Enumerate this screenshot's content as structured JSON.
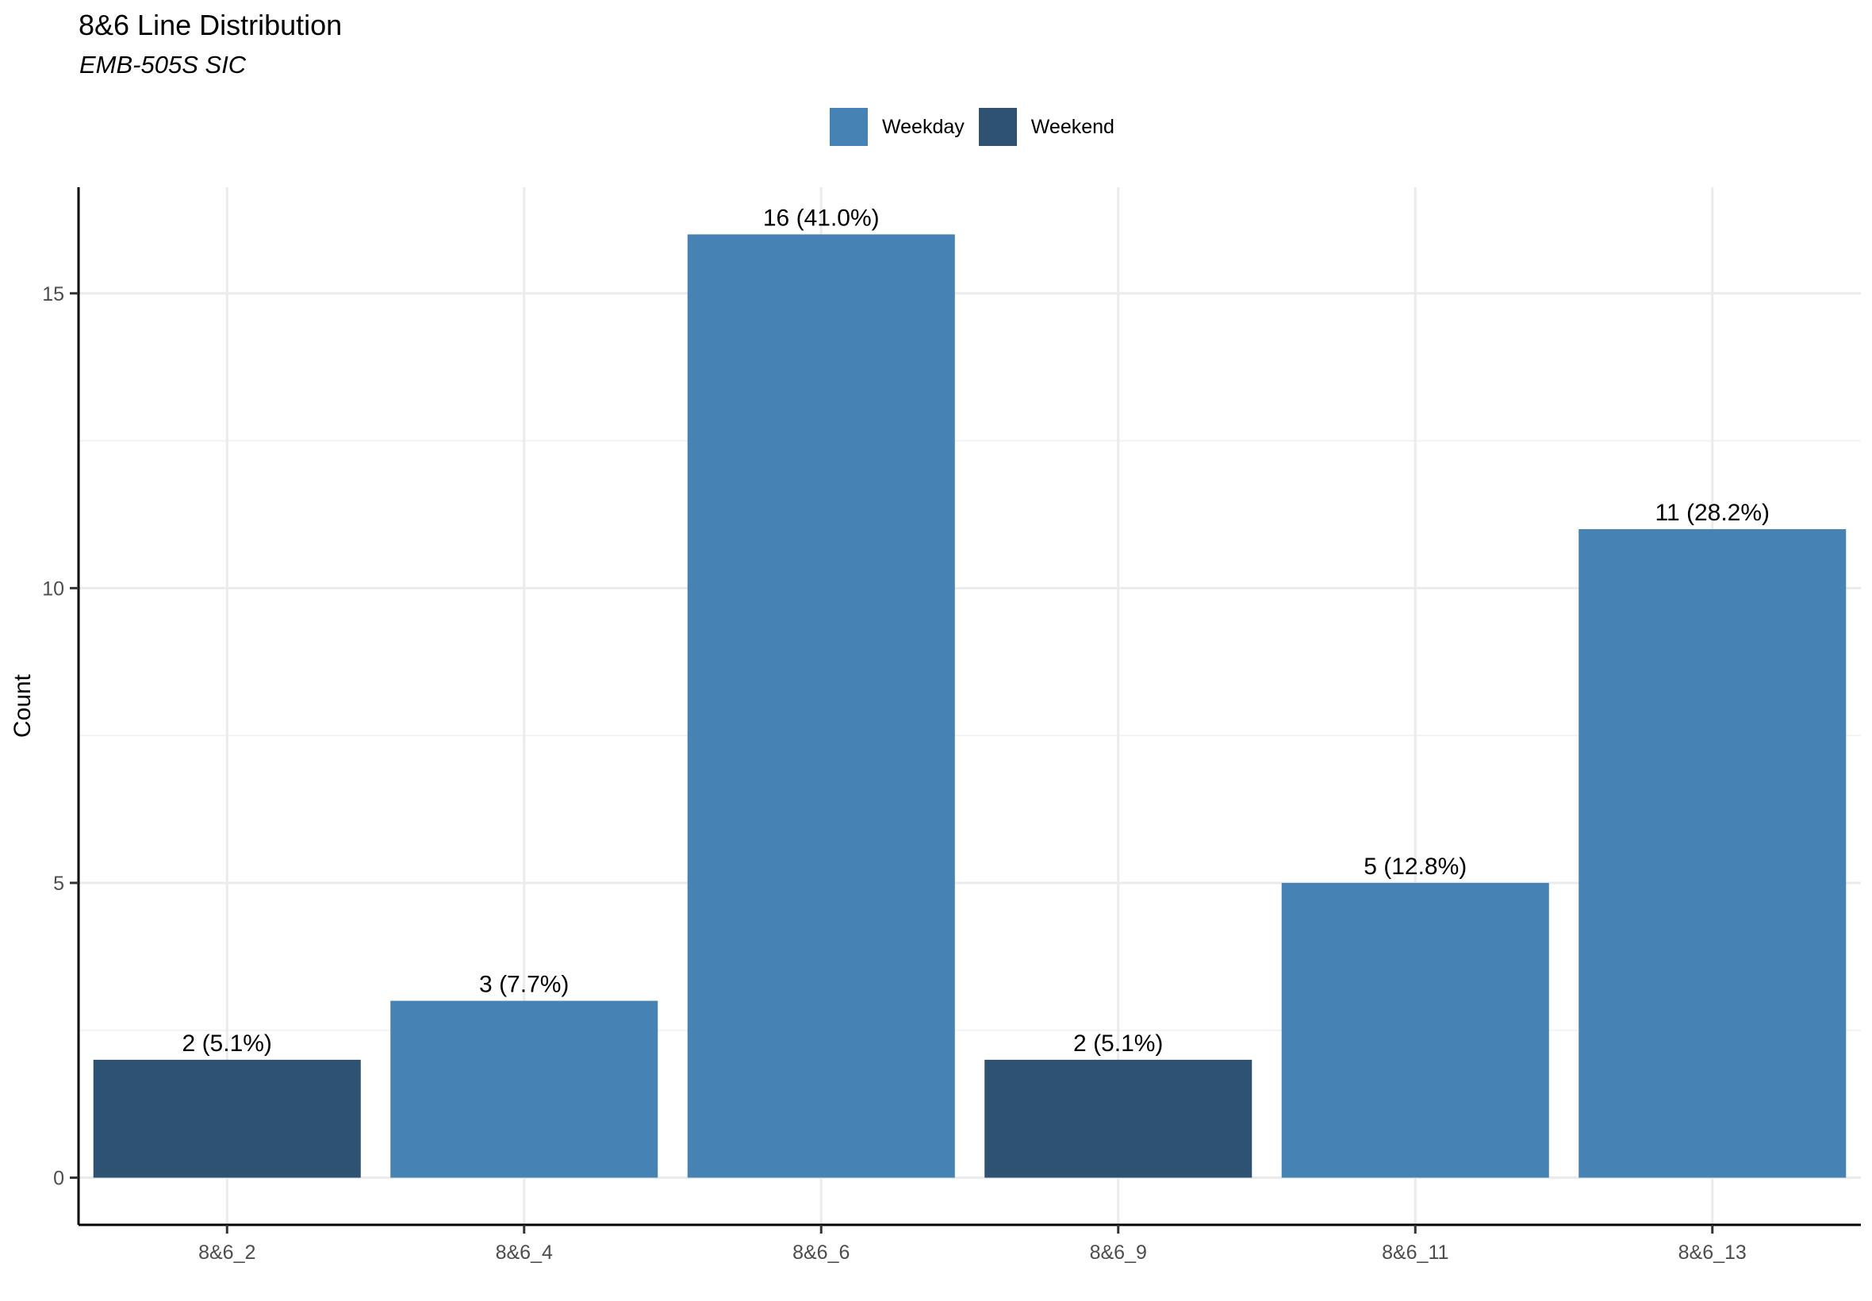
{
  "chart_data": {
    "type": "bar",
    "title": "8&6 Line Distribution",
    "subtitle": "EMB-505S SIC",
    "xlabel": "",
    "ylabel": "Count",
    "ylim": [
      -0.8,
      16.8
    ],
    "yticks": [
      0,
      5,
      10,
      15
    ],
    "grid": true,
    "legend_position": "top",
    "categories": [
      "8&6_2",
      "8&6_4",
      "8&6_6",
      "8&6_9",
      "8&6_11",
      "8&6_13"
    ],
    "values": [
      2,
      3,
      16,
      2,
      5,
      11
    ],
    "groups": [
      "Weekend",
      "Weekday",
      "Weekday",
      "Weekend",
      "Weekday",
      "Weekday"
    ],
    "data_labels": [
      "2 (5.1%)",
      "3 (7.7%)",
      "16 (41.0%)",
      "2 (5.1%)",
      "5 (12.8%)",
      "11 (28.2%)"
    ],
    "legend": [
      {
        "name": "Weekday",
        "color": "#4682B4"
      },
      {
        "name": "Weekend",
        "color": "#2E5272"
      }
    ]
  }
}
